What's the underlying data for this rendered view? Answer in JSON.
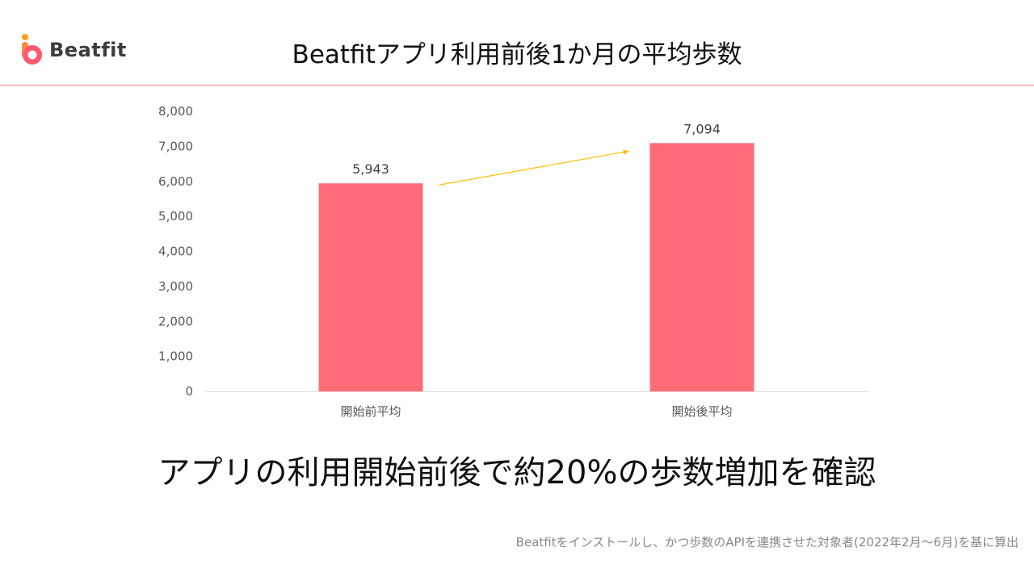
{
  "logo": {
    "text": "Beatfit",
    "brand_color": "#ff5a6e",
    "accent_color": "#ffa020"
  },
  "title": "Beatfitアプリ利用前後1か月の平均歩数",
  "headline": "アプリの利用開始前後で約20%の歩数増加を確認",
  "footnote": "Beatfitをインストールし、かつ歩数のAPIを連携させた対象者(2022年2月～6月)を基に算出",
  "colors": {
    "bar": "#ff6b77",
    "arrow": "#ffc000",
    "rule": "#f08080"
  },
  "chart_data": {
    "type": "bar",
    "categories": [
      "開始前平均",
      "開始後平均"
    ],
    "values": [
      5943,
      7094
    ],
    "data_labels": [
      "5,943",
      "7,094"
    ],
    "yticks": [
      "0",
      "1,000",
      "2,000",
      "3,000",
      "4,000",
      "5,000",
      "6,000",
      "7,000",
      "8,000"
    ],
    "ylim": [
      0,
      8000
    ],
    "grid": false,
    "annotation": "arrow from first bar to second bar"
  }
}
